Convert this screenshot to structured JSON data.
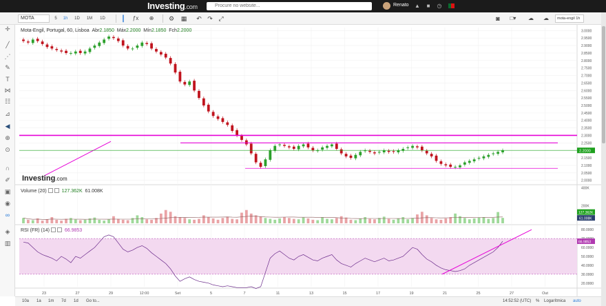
{
  "site": {
    "logo": "Investing",
    "logo_suffix": ".com",
    "search_placeholder": "Procure no website...",
    "username": "Renato"
  },
  "toolbar": {
    "symbol": "MOTA",
    "intervals": [
      "5",
      "1h",
      "1D",
      "1M",
      "1D"
    ],
    "active_interval": "1h",
    "right_select": "mota-engil 1h"
  },
  "legend": {
    "title": "Mota-Engil, Portugal, 60, Lisboa",
    "open_label": "Abr",
    "open": "2.1850",
    "high_label": "Máx",
    "high": "2.2000",
    "low_label": "Mín",
    "low": "2.1850",
    "close_label": "Fch",
    "close": "2.2000"
  },
  "watermark": {
    "text": "Investing",
    "suffix": ".com"
  },
  "volume_legend": {
    "label": "Volume (20)",
    "v1": "127.362K",
    "v2": "61.008K"
  },
  "rsi_legend": {
    "label": "RSI (FR) (14)",
    "value": "66.9853"
  },
  "bottom": {
    "ranges": [
      "10a",
      "1a",
      "1m",
      "7d",
      "1d",
      "Go to..."
    ],
    "time": "14:52:52 (UTC)",
    "pct": "%",
    "log": "Logarítmica",
    "auto": "auto"
  },
  "colors": {
    "up": "#2ca02c",
    "down": "#c0141e",
    "magenta": "#e600d7",
    "vol_up": "#9fd99a",
    "vol_down": "#e9a3a6",
    "rsi_band": "#f3d9f0",
    "current": "#1ea01e"
  },
  "chart_data": [
    {
      "type": "candlestick",
      "title": "Mota-Engil, Portugal, 60, Lisboa",
      "x_ticks": [
        "23",
        "27",
        "29",
        "12:00",
        "Set",
        "5",
        "7",
        "11",
        "13",
        "15",
        "17",
        "19",
        "21",
        "25",
        "27",
        "Out",
        "3"
      ],
      "y_ticks": [
        3.0,
        2.95,
        2.9,
        2.85,
        2.8,
        2.75,
        2.7,
        2.65,
        2.6,
        2.55,
        2.5,
        2.45,
        2.4,
        2.35,
        2.3,
        2.25,
        2.2,
        2.15,
        2.1,
        2.05,
        2.0
      ],
      "ylim": [
        1.98,
        3.02
      ],
      "current_price": 2.2,
      "close_path": [
        2.93,
        2.92,
        2.94,
        2.93,
        2.91,
        2.89,
        2.88,
        2.87,
        2.86,
        2.85,
        2.85,
        2.86,
        2.85,
        2.86,
        2.88,
        2.9,
        2.92,
        2.94,
        2.96,
        2.95,
        2.93,
        2.9,
        2.88,
        2.88,
        2.9,
        2.92,
        2.91,
        2.88,
        2.86,
        2.84,
        2.82,
        2.78,
        2.72,
        2.66,
        2.64,
        2.66,
        2.6,
        2.55,
        2.5,
        2.46,
        2.43,
        2.41,
        2.39,
        2.37,
        2.33,
        2.3,
        2.27,
        2.24,
        2.18,
        2.12,
        2.09,
        2.14,
        2.2,
        2.23,
        2.24,
        2.23,
        2.22,
        2.21,
        2.23,
        2.24,
        2.22,
        2.2,
        2.2,
        2.22,
        2.23,
        2.24,
        2.21,
        2.18,
        2.16,
        2.15,
        2.17,
        2.19,
        2.2,
        2.19,
        2.18,
        2.19,
        2.2,
        2.19,
        2.19,
        2.2,
        2.21,
        2.22,
        2.23,
        2.22,
        2.2,
        2.18,
        2.16,
        2.13,
        2.11,
        2.1,
        2.09,
        2.09,
        2.1,
        2.12,
        2.13,
        2.14,
        2.15,
        2.16,
        2.17,
        2.18,
        2.19,
        2.2
      ],
      "annotations": [
        {
          "kind": "hline",
          "price": 2.3,
          "color": "magenta"
        },
        {
          "kind": "hline",
          "price": 2.25,
          "color": "magenta"
        },
        {
          "kind": "hline",
          "price": 2.08,
          "color": "magenta"
        },
        {
          "kind": "trendline",
          "from": {
            "x": "26",
            "price": 2.03
          },
          "to": {
            "x": "29",
            "price": 2.26
          },
          "color": "magenta"
        }
      ]
    },
    {
      "type": "bar",
      "title": "Volume (20)",
      "y_ticks": [
        "400K",
        "200K"
      ],
      "labels": [
        "127.362K",
        "61.008K"
      ],
      "values_k": [
        60,
        40,
        35,
        55,
        30,
        45,
        70,
        40,
        30,
        50,
        60,
        45,
        35,
        40,
        55,
        65,
        40,
        30,
        45,
        80,
        50,
        40,
        35,
        60,
        90,
        70,
        45,
        40,
        60,
        110,
        150,
        130,
        80,
        70,
        60,
        45,
        40,
        50,
        90,
        70,
        55,
        40,
        60,
        75,
        50,
        45,
        120,
        150,
        110,
        90,
        75,
        60,
        50,
        40,
        55,
        70,
        60,
        50,
        45,
        65,
        55,
        40,
        35,
        70,
        50,
        45,
        60,
        80,
        65,
        40,
        35,
        55,
        70,
        50,
        45,
        60,
        75,
        50,
        40,
        55,
        70,
        45,
        60,
        100,
        130,
        90,
        60,
        45,
        40,
        55,
        70,
        110,
        80,
        60,
        45,
        55,
        65,
        70,
        50,
        60,
        127,
        61
      ]
    },
    {
      "type": "line",
      "title": "RSI (FR) (14)",
      "y_ticks": [
        80,
        70,
        60,
        50,
        40,
        30,
        20
      ],
      "ylim": [
        16,
        84
      ],
      "band": [
        30,
        70
      ],
      "current": 66.9853,
      "values": [
        66,
        65,
        60,
        55,
        52,
        50,
        48,
        45,
        50,
        47,
        43,
        50,
        48,
        52,
        56,
        60,
        66,
        72,
        74,
        72,
        65,
        58,
        55,
        57,
        60,
        62,
        59,
        54,
        50,
        46,
        42,
        36,
        28,
        22,
        25,
        27,
        24,
        22,
        21,
        20,
        18,
        17,
        16,
        17,
        16,
        15,
        15,
        15,
        16,
        14,
        16,
        32,
        48,
        53,
        56,
        52,
        48,
        46,
        50,
        52,
        49,
        46,
        45,
        48,
        50,
        52,
        46,
        42,
        40,
        38,
        42,
        45,
        48,
        46,
        44,
        46,
        48,
        45,
        46,
        48,
        50,
        55,
        60,
        58,
        52,
        47,
        44,
        40,
        37,
        35,
        34,
        33,
        34,
        36,
        40,
        43,
        46,
        49,
        52,
        55,
        60,
        67
      ]
    }
  ]
}
